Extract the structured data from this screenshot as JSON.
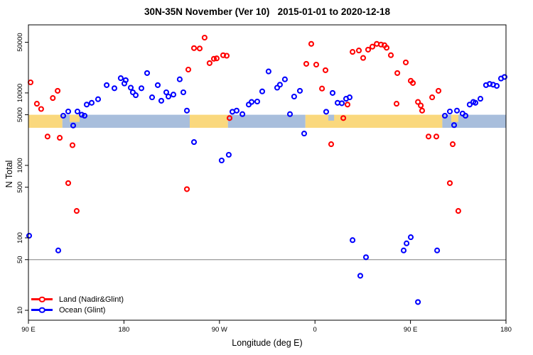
{
  "chart_data": {
    "type": "scatter",
    "title": "30N-35N November (Ver 10)   2015-01-01 to 2020-12-18",
    "xlabel": "Longitude (deg E)",
    "ylabel": "N Total",
    "yscale": "log",
    "xlim": [
      90,
      540
    ],
    "ylim": [
      7.3,
      87000
    ],
    "grid": false,
    "x_ticks": [
      {
        "value": 90,
        "label": "90 E"
      },
      {
        "value": 180,
        "label": "180"
      },
      {
        "value": 270,
        "label": "90 W"
      },
      {
        "value": 360,
        "label": "0"
      },
      {
        "value": 450,
        "label": "90 E"
      },
      {
        "value": 540,
        "label": "180"
      }
    ],
    "y_ticks": [
      {
        "value": 10,
        "label": "10"
      },
      {
        "value": 50,
        "label": "50"
      },
      {
        "value": 100,
        "label": "100"
      },
      {
        "value": 500,
        "label": "500"
      },
      {
        "value": 1000,
        "label": "1000"
      },
      {
        "value": 5000,
        "label": "5000"
      },
      {
        "value": 10000,
        "label": "10000"
      },
      {
        "value": 50000,
        "label": "50000"
      }
    ],
    "refline": {
      "value": 50,
      "color": "#808080"
    },
    "band": {
      "top": 5000,
      "bottom": 3300,
      "land_color": "#FAD87D",
      "ocean_color": "#A8BEDC",
      "segments": [
        {
          "from": 90,
          "to": 122,
          "type": "land"
        },
        {
          "from": 122,
          "to": 242,
          "type": "ocean"
        },
        {
          "from": 242,
          "to": 278,
          "type": "land"
        },
        {
          "from": 278,
          "to": 351,
          "type": "ocean"
        },
        {
          "from": 351,
          "to": 480,
          "type": "land"
        },
        {
          "from": 480,
          "to": 540,
          "type": "ocean"
        }
      ],
      "patches": [
        {
          "from": 128.8,
          "to": 138.2,
          "type": "land",
          "frac": 0.55
        },
        {
          "from": 372.6,
          "to": 378.0,
          "type": "ocean",
          "frac": 0.45
        },
        {
          "from": 488.4,
          "to": 495.1,
          "type": "land",
          "frac": 0.55
        }
      ]
    },
    "series": [
      {
        "name": "Land (Nadir&Glint)",
        "color": "#FF0000",
        "points": [
          [
            92,
            14000
          ],
          [
            98,
            7100
          ],
          [
            102,
            6000
          ],
          [
            108,
            2500
          ],
          [
            113,
            8500
          ],
          [
            117.5,
            10700
          ],
          [
            119.5,
            2400
          ],
          [
            127.5,
            570
          ],
          [
            131.5,
            1900
          ],
          [
            135.5,
            235
          ],
          [
            239.3,
            470
          ],
          [
            240.7,
            21000
          ],
          [
            246,
            41500
          ],
          [
            251.4,
            41000
          ],
          [
            256,
            58000
          ],
          [
            260.7,
            25800
          ],
          [
            264.8,
            29600
          ],
          [
            267.4,
            30000
          ],
          [
            273.5,
            33100
          ],
          [
            276.8,
            32600
          ],
          [
            279.5,
            4500
          ],
          [
            351.8,
            25200
          ],
          [
            356.5,
            47500
          ],
          [
            361.2,
            24600
          ],
          [
            366.6,
            11500
          ],
          [
            369.9,
            20600
          ],
          [
            375.3,
            1960
          ],
          [
            386.7,
            4500
          ],
          [
            390.7,
            6900
          ],
          [
            395.4,
            36800
          ],
          [
            401.4,
            38500
          ],
          [
            405.4,
            30400
          ],
          [
            410.1,
            39600
          ],
          [
            414.1,
            43500
          ],
          [
            418.2,
            47500
          ],
          [
            422.2,
            46500
          ],
          [
            425.5,
            45500
          ],
          [
            427.5,
            42000
          ],
          [
            431.5,
            33200
          ],
          [
            436.9,
            7100
          ],
          [
            437.6,
            18800
          ],
          [
            445.6,
            26400
          ],
          [
            450.3,
            14700
          ],
          [
            452.3,
            13700
          ],
          [
            457,
            7500
          ],
          [
            459.7,
            6700
          ],
          [
            461,
            5700
          ],
          [
            467,
            2500
          ],
          [
            470.4,
            8700
          ],
          [
            474.4,
            2500
          ],
          [
            476.4,
            10700
          ],
          [
            487.1,
            570
          ],
          [
            489.8,
            1960
          ],
          [
            495.1,
            235
          ]
        ]
      },
      {
        "name": "Ocean (Glint)",
        "color": "#0000FF",
        "points": [
          [
            90.7,
            107
          ],
          [
            118.1,
            67
          ],
          [
            122.8,
            4850
          ],
          [
            127.5,
            5550
          ],
          [
            132.2,
            3550
          ],
          [
            136.2,
            5550
          ],
          [
            140.2,
            5000
          ],
          [
            142.9,
            4850
          ],
          [
            144.9,
            6900
          ],
          [
            149.6,
            7300
          ],
          [
            155.6,
            8200
          ],
          [
            163.7,
            12800
          ],
          [
            171,
            11600
          ],
          [
            177,
            16000
          ],
          [
            180.4,
            13500
          ],
          [
            181.7,
            15000
          ],
          [
            186.4,
            11800
          ],
          [
            188.4,
            10200
          ],
          [
            191.1,
            9300
          ],
          [
            196.5,
            11600
          ],
          [
            201.8,
            18800
          ],
          [
            206.5,
            8700
          ],
          [
            211.9,
            12800
          ],
          [
            215.2,
            7800
          ],
          [
            219.9,
            10200
          ],
          [
            221.9,
            8900
          ],
          [
            226.6,
            9500
          ],
          [
            232.6,
            15400
          ],
          [
            236,
            10200
          ],
          [
            239.3,
            5700
          ],
          [
            246,
            2100
          ],
          [
            272.1,
            1170
          ],
          [
            278.8,
            1400
          ],
          [
            282.2,
            5500
          ],
          [
            286.2,
            5700
          ],
          [
            291.6,
            5100
          ],
          [
            297.6,
            6900
          ],
          [
            300.3,
            7500
          ],
          [
            305.6,
            7600
          ],
          [
            310.3,
            10500
          ],
          [
            316.3,
            19800
          ],
          [
            324.4,
            11800
          ],
          [
            327,
            13000
          ],
          [
            331.7,
            15400
          ],
          [
            336.4,
            5100
          ],
          [
            340.4,
            8900
          ],
          [
            345.8,
            10700
          ],
          [
            349.8,
            2750
          ],
          [
            370.6,
            5500
          ],
          [
            376.6,
            10000
          ],
          [
            381.3,
            7300
          ],
          [
            385.3,
            7200
          ],
          [
            389.3,
            8300
          ],
          [
            392.7,
            8700
          ],
          [
            395.4,
            93
          ],
          [
            402.7,
            30
          ],
          [
            408.1,
            54
          ],
          [
            443.6,
            67
          ],
          [
            446.3,
            84
          ],
          [
            450.3,
            102
          ],
          [
            457,
            13
          ],
          [
            475.1,
            67
          ],
          [
            482.4,
            4850
          ],
          [
            487.1,
            5550
          ],
          [
            491.1,
            3600
          ],
          [
            493.8,
            5700
          ],
          [
            499.1,
            5200
          ],
          [
            501.8,
            4850
          ],
          [
            505.8,
            6900
          ],
          [
            509.2,
            7500
          ],
          [
            511.2,
            7300
          ],
          [
            515.9,
            8300
          ],
          [
            521.2,
            12800
          ],
          [
            524.6,
            13300
          ],
          [
            527.9,
            13000
          ],
          [
            531.3,
            12500
          ],
          [
            535.3,
            15800
          ],
          [
            538.6,
            16600
          ]
        ]
      }
    ],
    "legend": {
      "position": "bottom-left",
      "items": [
        {
          "label": "Land (Nadir&Glint)",
          "color": "#FF0000"
        },
        {
          "label": "Ocean (Glint)",
          "color": "#0000FF"
        }
      ]
    }
  }
}
